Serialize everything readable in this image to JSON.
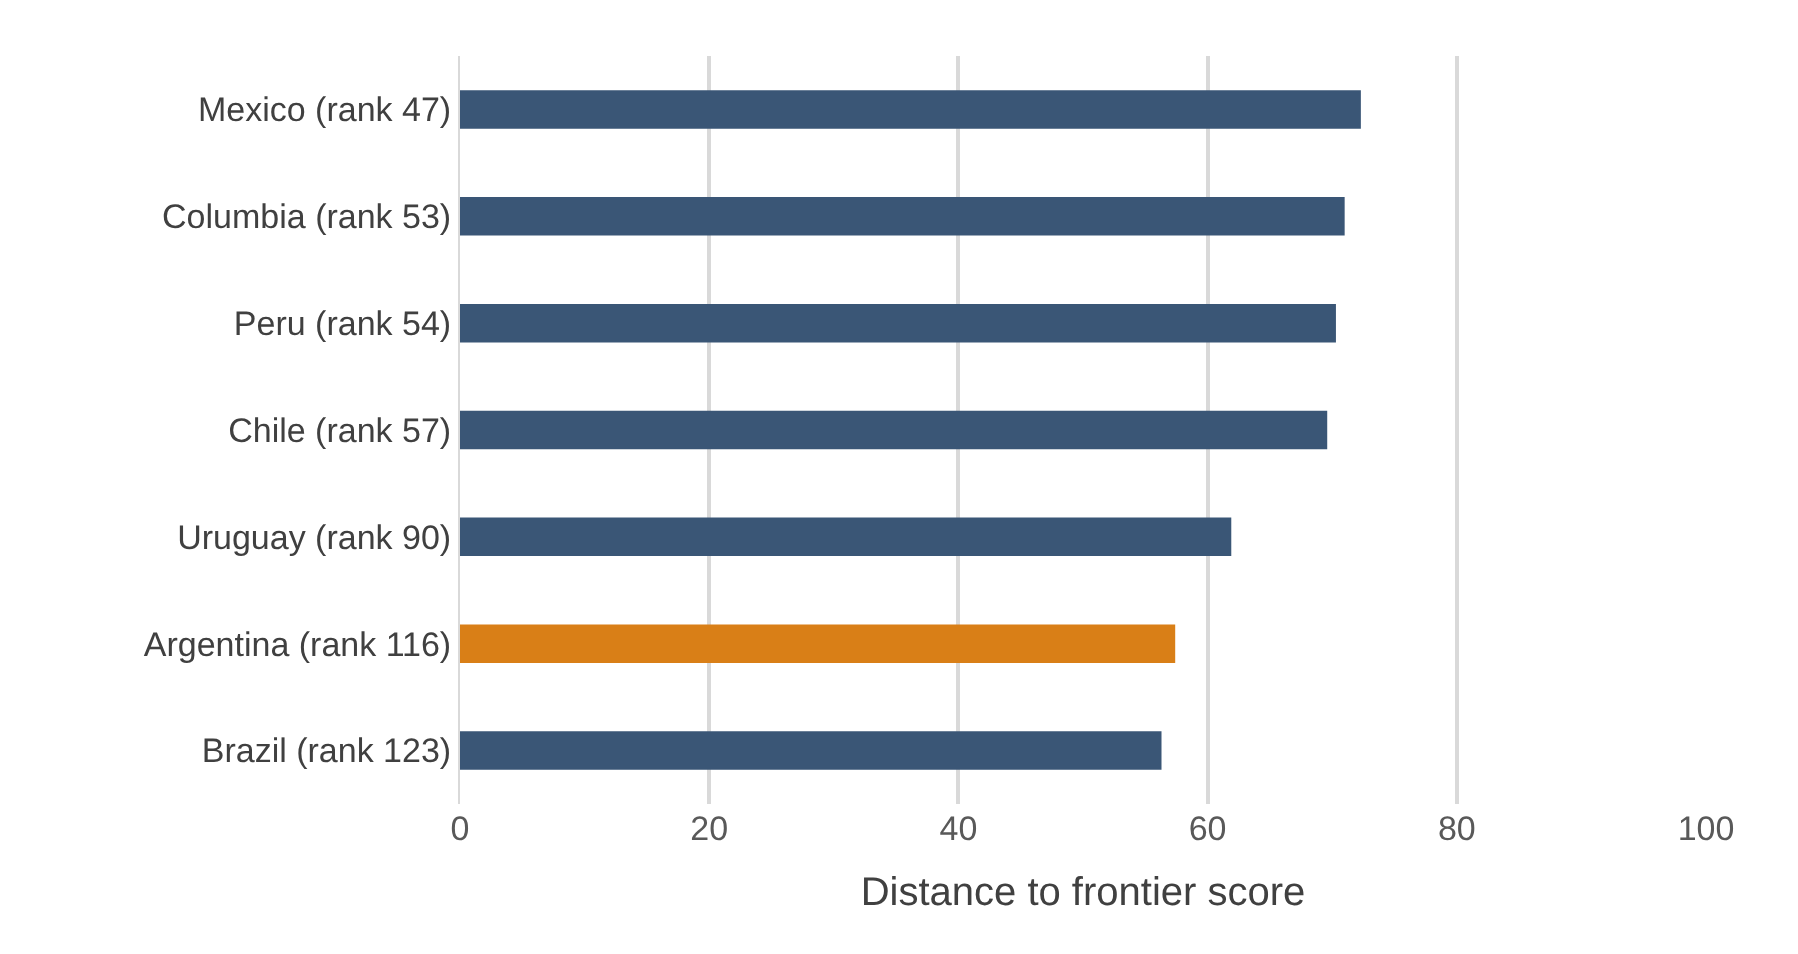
{
  "chart_data": {
    "type": "bar",
    "orientation": "horizontal",
    "xlabel": "Distance to frontier score",
    "categories": [
      "Mexico (rank 47)",
      "Columbia (rank 53)",
      "Peru (rank 54)",
      "Chile (rank 57)",
      "Uruguay (rank 90)",
      "Argentina (rank 116)",
      "Brazil (rank 123)"
    ],
    "values": [
      72.3,
      71.0,
      70.3,
      69.6,
      61.9,
      57.4,
      56.3
    ],
    "colors": [
      "#3a5676",
      "#3a5676",
      "#3a5676",
      "#3a5676",
      "#3a5676",
      "#d97f17",
      "#3a5676"
    ],
    "xlim": [
      0,
      100
    ],
    "xticks": [
      0,
      20,
      40,
      60,
      80,
      100
    ],
    "grid": "x"
  }
}
